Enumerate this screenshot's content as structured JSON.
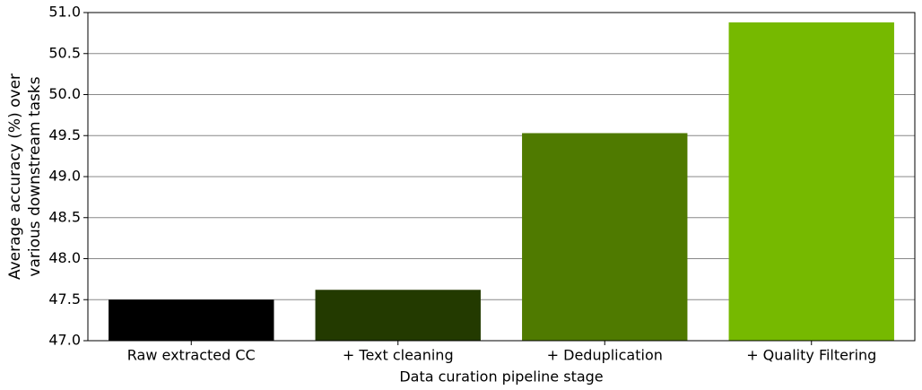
{
  "chart_data": {
    "type": "bar",
    "xlabel": "Data curation pipeline stage",
    "ylabel": [
      "Average accuracy (%) over",
      "various downstream tasks"
    ],
    "categories": [
      "Raw extracted CC",
      "+ Text cleaning",
      "+ Deduplication",
      "+ Quality Filtering"
    ],
    "values": [
      47.5,
      47.62,
      49.53,
      50.88
    ],
    "colors": [
      "#000000",
      "#233a00",
      "#4f7a00",
      "#76b900"
    ],
    "ylim": [
      47,
      51
    ],
    "yticks": [
      {
        "value": 47,
        "label": "47.0"
      },
      47.5,
      {
        "value": 48,
        "label": "48.0"
      },
      48.5,
      {
        "value": 49,
        "label": "49.0"
      },
      49.5,
      {
        "value": 50,
        "label": "50.0"
      },
      50.5,
      {
        "value": 51,
        "label": "51.0"
      }
    ],
    "grid": true
  }
}
